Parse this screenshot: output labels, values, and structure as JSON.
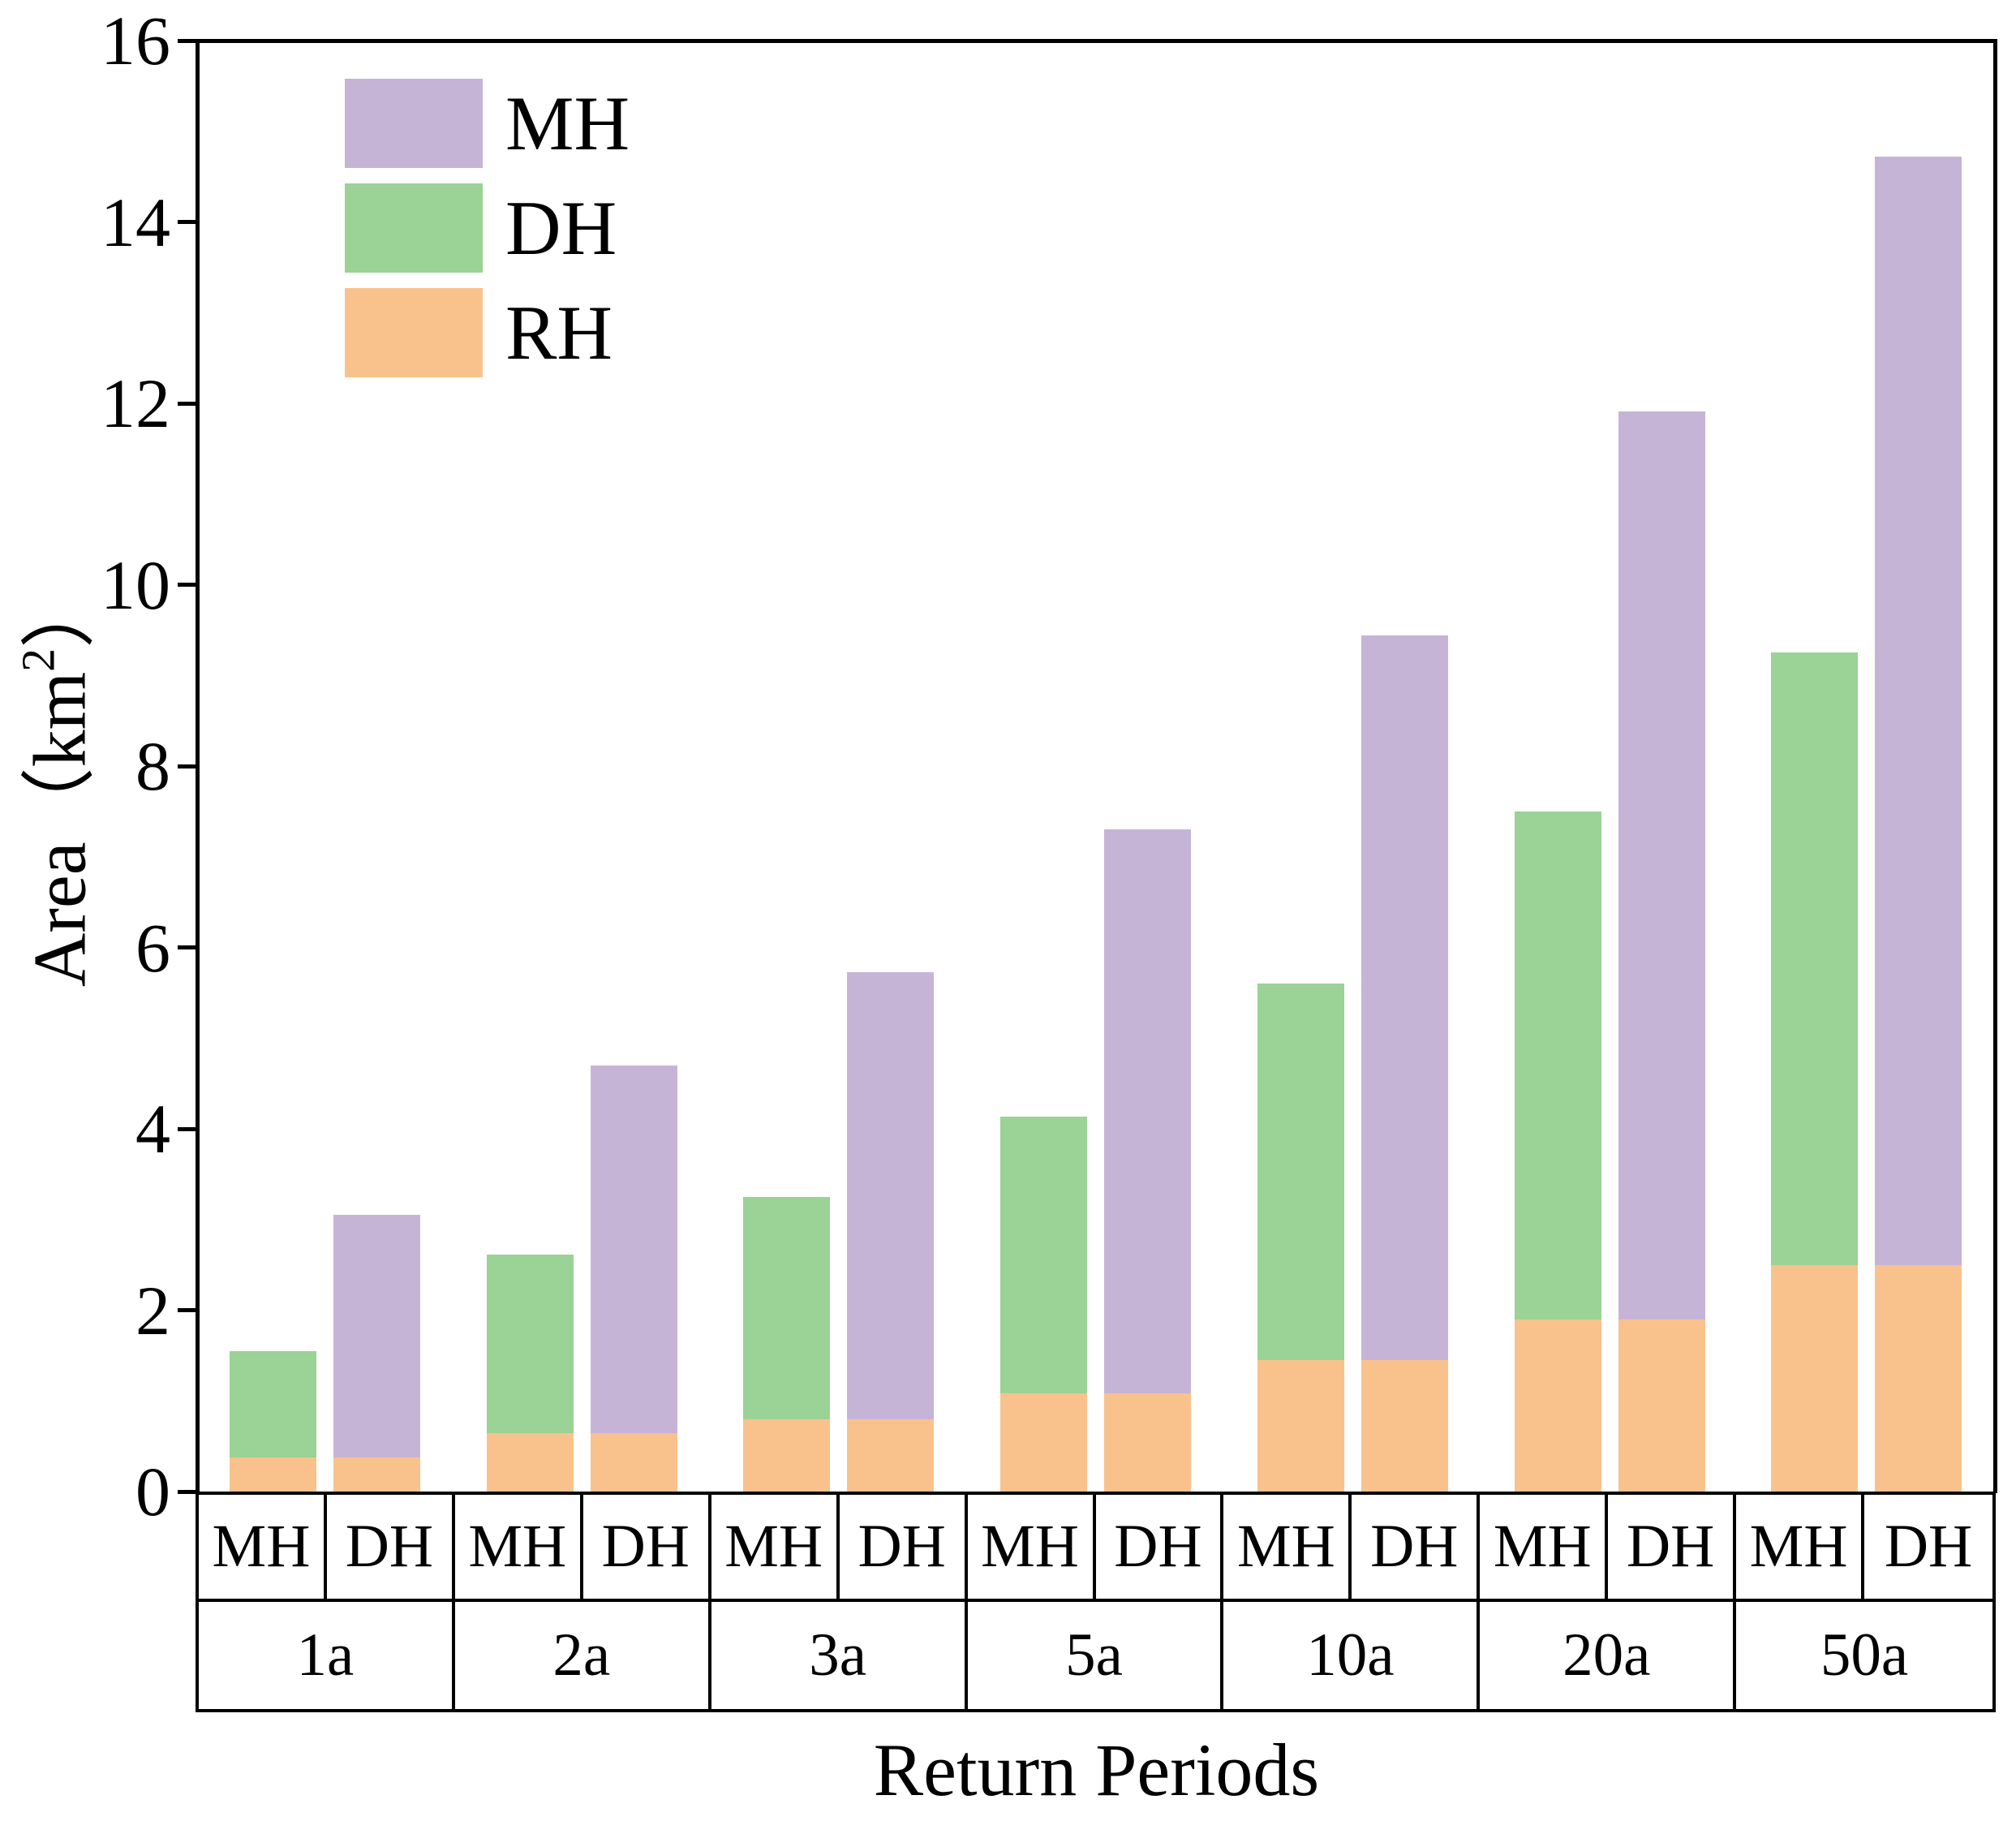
{
  "chart_data": {
    "type": "bar",
    "subtype": "grouped-stacked-bar",
    "title": "",
    "xlabel": "Return Periods",
    "ylabel_prefix": "Area",
    "ylabel_unit_open": "（km",
    "ylabel_unit_sup": "2",
    "ylabel_unit_close": "）",
    "ylim": [
      0,
      16
    ],
    "yticks": [
      0,
      2,
      4,
      6,
      8,
      10,
      12,
      14,
      16
    ],
    "grid": false,
    "legend_position": "top-left-inside",
    "legend": [
      {
        "name": "MH",
        "color": "#c6b4d7"
      },
      {
        "name": "DH",
        "color": "#9bd295"
      },
      {
        "name": "RH",
        "color": "#f9c28c"
      }
    ],
    "categories": [
      "1a",
      "2a",
      "3a",
      "5a",
      "10a",
      "20a",
      "50a"
    ],
    "bar_column_labels": [
      "MH",
      "DH"
    ],
    "stacking_note": "Each period has two bars: the bar in the MH column stacks RH (bottom, orange) + DH (top, green); the bar in the DH column stacks RH (bottom, orange) + MH (top, purple).",
    "groups": [
      {
        "period": "1a",
        "MH_column": {
          "RH": 0.38,
          "DH": 1.17,
          "total": 1.55
        },
        "DH_column": {
          "RH": 0.38,
          "MH": 2.67,
          "total": 3.05
        }
      },
      {
        "period": "2a",
        "MH_column": {
          "RH": 0.64,
          "DH": 1.97,
          "total": 2.61
        },
        "DH_column": {
          "RH": 0.64,
          "MH": 4.06,
          "total": 4.7
        }
      },
      {
        "period": "3a",
        "MH_column": {
          "RH": 0.8,
          "DH": 2.45,
          "total": 3.25
        },
        "DH_column": {
          "RH": 0.8,
          "MH": 4.93,
          "total": 5.73
        }
      },
      {
        "period": "5a",
        "MH_column": {
          "RH": 1.08,
          "DH": 3.05,
          "total": 4.13
        },
        "DH_column": {
          "RH": 1.08,
          "MH": 6.22,
          "total": 7.3
        }
      },
      {
        "period": "10a",
        "MH_column": {
          "RH": 1.45,
          "DH": 4.15,
          "total": 5.6
        },
        "DH_column": {
          "RH": 1.45,
          "MH": 7.99,
          "total": 9.44
        }
      },
      {
        "period": "20a",
        "MH_column": {
          "RH": 1.9,
          "DH": 5.6,
          "total": 7.5
        },
        "DH_column": {
          "RH": 1.9,
          "MH": 10.01,
          "total": 11.91
        }
      },
      {
        "period": "50a",
        "MH_column": {
          "RH": 2.5,
          "DH": 6.75,
          "total": 9.25
        },
        "DH_column": {
          "RH": 2.5,
          "MH": 12.22,
          "total": 14.72
        }
      }
    ],
    "colors": {
      "MH": "#c6b4d7",
      "DH": "#9bd295",
      "RH": "#f9c28c",
      "axis": "#000000",
      "background": "#ffffff"
    }
  }
}
